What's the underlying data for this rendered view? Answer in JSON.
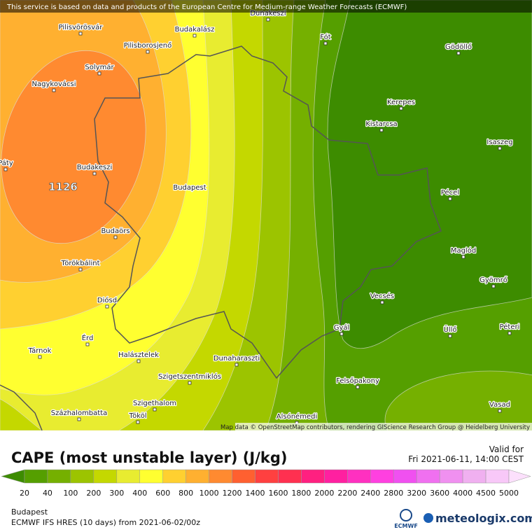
{
  "header": {
    "notice": "This service is based on data and products of the European Centre for Medium-range Weather Forecasts (ECMWF)"
  },
  "places": [
    "Pilisvörösvár",
    "Budakalász",
    "Dunakeszi",
    "Fót",
    "Gödöllő",
    "Pilisborosjenő",
    "Solymár",
    "Nagykovácsi",
    "Kerepes",
    "Kistarcsa",
    "Isaszeg",
    "Páty",
    "Budakeszi",
    "Budapest",
    "Pécel",
    "Budaörs",
    "Maglód",
    "Törökbálint",
    "Gyömrő",
    "Diósd",
    "Vecsés",
    "Gyál",
    "Üllő",
    "Péteri",
    "Érd",
    "Tárnok",
    "Halásztelek",
    "Dunaharaszti",
    "Szigetszentmiklós",
    "Felsőpakony",
    "Szigethalom",
    "Vasad",
    "Százhalombatta",
    "Tököl",
    "Alsónémedi"
  ],
  "max_label": "1126",
  "attribution": "Map data © OpenStreetMap contributors, rendering GIScience Research Group @ Heidelberg University",
  "legend": {
    "title": "CAPE (most unstable layer) (J/kg)",
    "ticks": [
      20,
      40,
      100,
      200,
      300,
      400,
      600,
      800,
      1000,
      1200,
      1400,
      1600,
      1800,
      2000,
      2200,
      2400,
      2800,
      3200,
      3600,
      4000,
      4500,
      5000
    ],
    "colors": [
      "#3d8c00",
      "#559f00",
      "#75b000",
      "#9cc400",
      "#c4d800",
      "#e8ec30",
      "#ffff30",
      "#ffd030",
      "#ffb030",
      "#ff8a30",
      "#ff6030",
      "#ff4040",
      "#ff3050",
      "#ff2080",
      "#ff20a0",
      "#ff30c0",
      "#ff40e0",
      "#f050f0",
      "#f070f0",
      "#f090f0",
      "#f0b0f0",
      "#f8c8f8",
      "#fce0fc"
    ]
  },
  "valid": {
    "label": "Valid for",
    "time": "Fri 2021-06-11, 14:00 CEST"
  },
  "footer": {
    "location": "Budapest",
    "model": "ECMWF IFS HRES (10 days) from 2021-06-02/00z",
    "ecmwf": "ECMWF",
    "brand": "meteologix.com"
  }
}
